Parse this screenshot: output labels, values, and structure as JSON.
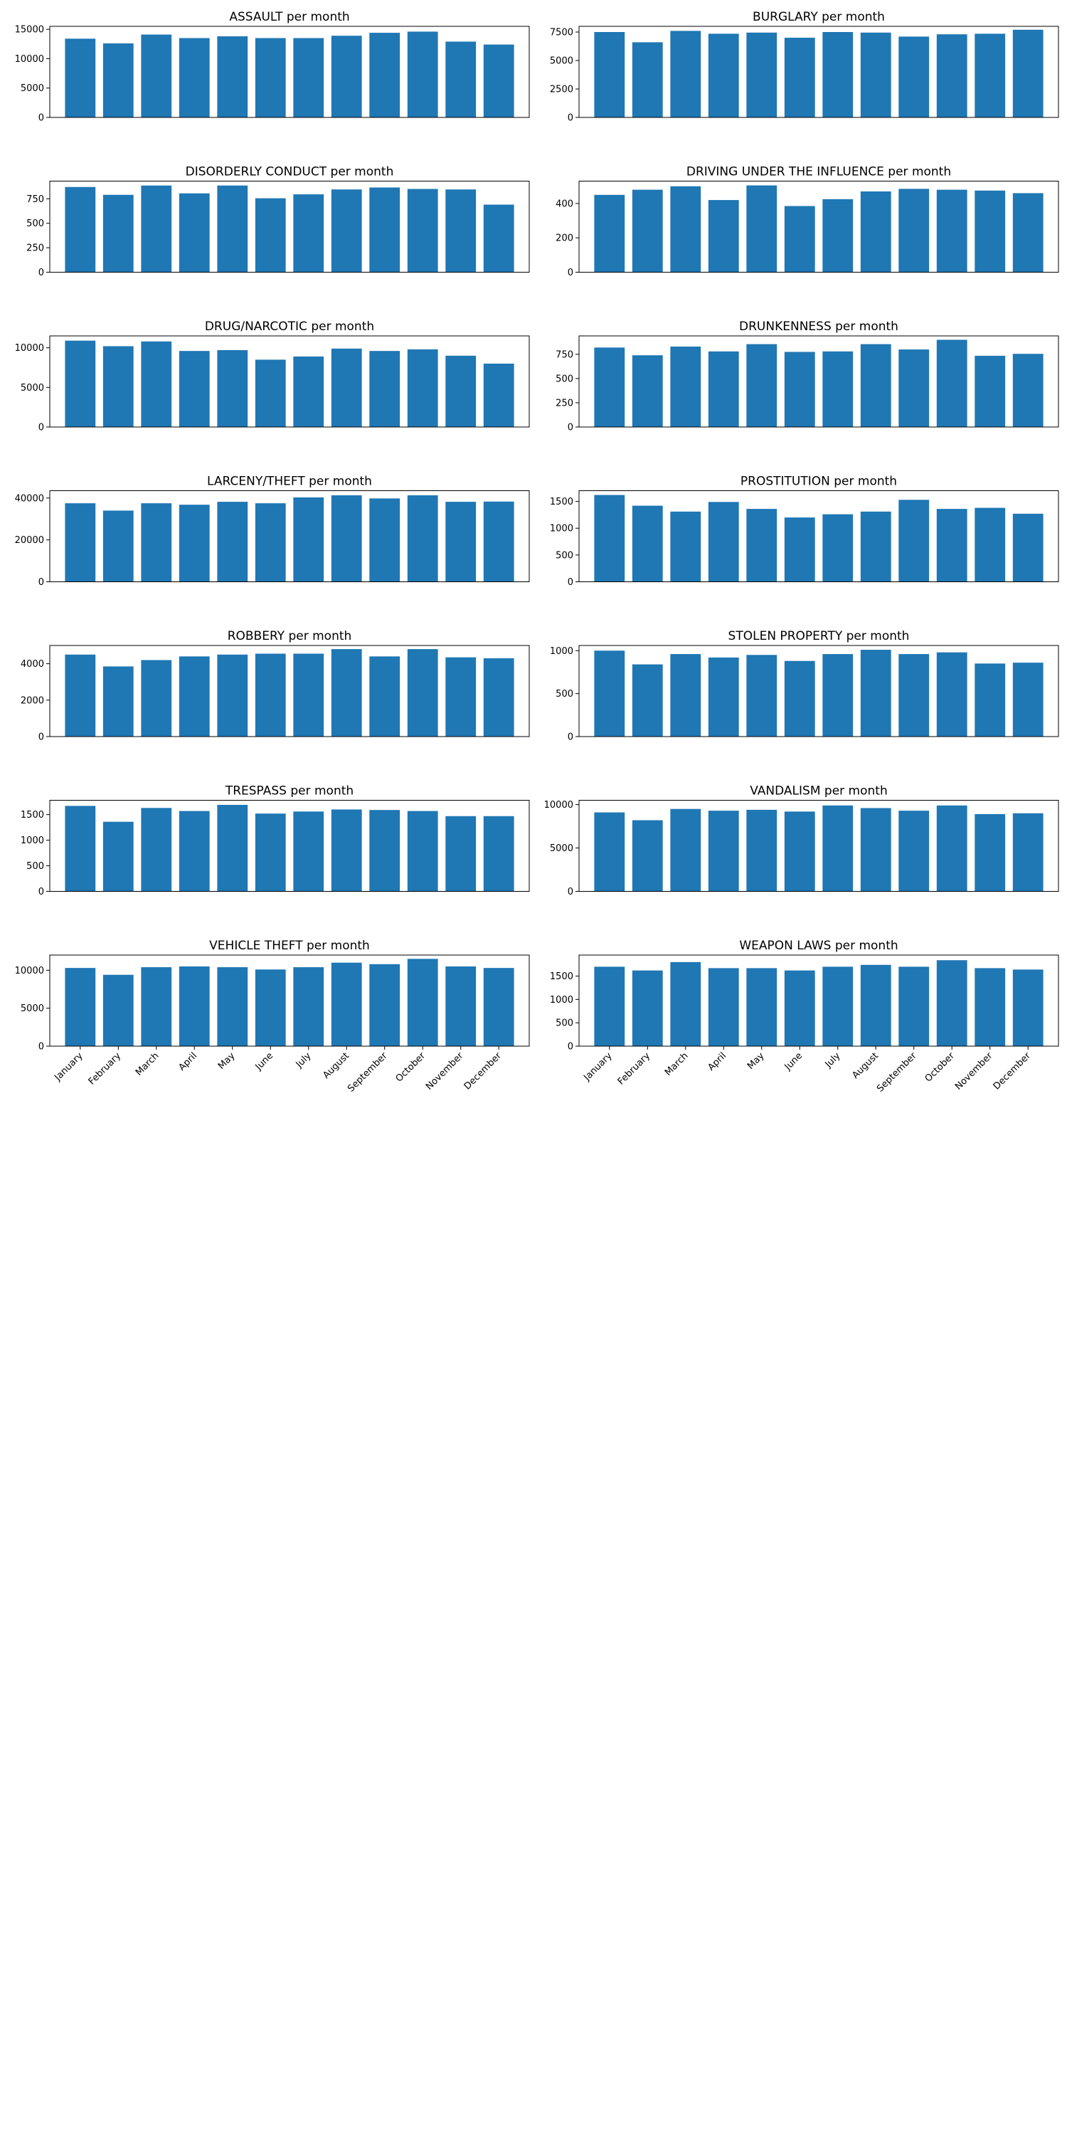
{
  "chart_data": [
    {
      "type": "bar",
      "title": "ASSAULT per month",
      "categories": [
        "January",
        "February",
        "March",
        "April",
        "May",
        "June",
        "July",
        "August",
        "September",
        "October",
        "November",
        "December"
      ],
      "values": [
        13400,
        12600,
        14100,
        13500,
        13800,
        13500,
        13500,
        13900,
        14400,
        14600,
        12900,
        12400
      ],
      "ylim": [
        0,
        15500
      ],
      "yticks": [
        0,
        5000,
        10000,
        15000
      ],
      "yticklabels": [
        "0",
        "5000",
        "10000",
        "15000"
      ],
      "show_xticklabels": false,
      "color": "#1f77b4"
    },
    {
      "type": "bar",
      "title": "BURGLARY per month",
      "categories": [
        "January",
        "February",
        "March",
        "April",
        "May",
        "June",
        "July",
        "August",
        "September",
        "October",
        "November",
        "December"
      ],
      "values": [
        7500,
        6600,
        7600,
        7350,
        7450,
        7000,
        7500,
        7450,
        7100,
        7300,
        7350,
        7700
      ],
      "ylim": [
        0,
        8000
      ],
      "yticks": [
        0,
        2500,
        5000,
        7500
      ],
      "yticklabels": [
        "0",
        "2500",
        "5000",
        "7500"
      ],
      "show_xticklabels": false,
      "color": "#1f77b4"
    },
    {
      "type": "bar",
      "title": "DISORDERLY CONDUCT per month",
      "categories": [
        "January",
        "February",
        "March",
        "April",
        "May",
        "June",
        "July",
        "August",
        "September",
        "October",
        "November",
        "December"
      ],
      "values": [
        870,
        790,
        885,
        805,
        885,
        755,
        795,
        845,
        865,
        850,
        845,
        690
      ],
      "ylim": [
        0,
        930
      ],
      "yticks": [
        0,
        250,
        500,
        750
      ],
      "yticklabels": [
        "0",
        "250",
        "500",
        "750"
      ],
      "show_xticklabels": false,
      "color": "#1f77b4"
    },
    {
      "type": "bar",
      "title": "DRIVING UNDER THE INFLUENCE per month",
      "categories": [
        "January",
        "February",
        "March",
        "April",
        "May",
        "June",
        "July",
        "August",
        "September",
        "October",
        "November",
        "December"
      ],
      "values": [
        450,
        480,
        500,
        420,
        505,
        385,
        425,
        470,
        485,
        480,
        475,
        460
      ],
      "ylim": [
        0,
        530
      ],
      "yticks": [
        0,
        200,
        400
      ],
      "yticklabels": [
        "0",
        "200",
        "400"
      ],
      "show_xticklabels": false,
      "color": "#1f77b4"
    },
    {
      "type": "bar",
      "title": "DRUG/NARCOTIC per month",
      "categories": [
        "January",
        "February",
        "March",
        "April",
        "May",
        "June",
        "July",
        "August",
        "September",
        "October",
        "November",
        "December"
      ],
      "values": [
        10900,
        10200,
        10800,
        9600,
        9700,
        8500,
        8900,
        9900,
        9600,
        9800,
        9000,
        8000
      ],
      "ylim": [
        0,
        11500
      ],
      "yticks": [
        0,
        5000,
        10000
      ],
      "yticklabels": [
        "0",
        "5000",
        "10000"
      ],
      "show_xticklabels": false,
      "color": "#1f77b4"
    },
    {
      "type": "bar",
      "title": "DRUNKENNESS per month",
      "categories": [
        "January",
        "February",
        "March",
        "April",
        "May",
        "June",
        "July",
        "August",
        "September",
        "October",
        "November",
        "December"
      ],
      "values": [
        820,
        740,
        830,
        780,
        855,
        775,
        780,
        855,
        800,
        900,
        735,
        755
      ],
      "ylim": [
        0,
        940
      ],
      "yticks": [
        0,
        250,
        500,
        750
      ],
      "yticklabels": [
        "0",
        "250",
        "500",
        "750"
      ],
      "show_xticklabels": false,
      "color": "#1f77b4"
    },
    {
      "type": "bar",
      "title": "LARCENY/THEFT per month",
      "categories": [
        "January",
        "February",
        "March",
        "April",
        "May",
        "June",
        "July",
        "August",
        "September",
        "October",
        "November",
        "December"
      ],
      "values": [
        37500,
        34000,
        37500,
        36800,
        38200,
        37500,
        40300,
        41300,
        39800,
        41300,
        38200,
        38300
      ],
      "ylim": [
        0,
        43500
      ],
      "yticks": [
        0,
        20000,
        40000
      ],
      "yticklabels": [
        "0",
        "20000",
        "40000"
      ],
      "show_xticklabels": false,
      "color": "#1f77b4"
    },
    {
      "type": "bar",
      "title": "PROSTITUTION per month",
      "categories": [
        "January",
        "February",
        "March",
        "April",
        "May",
        "June",
        "July",
        "August",
        "September",
        "October",
        "November",
        "December"
      ],
      "values": [
        1620,
        1420,
        1310,
        1490,
        1360,
        1200,
        1260,
        1310,
        1530,
        1360,
        1380,
        1270
      ],
      "ylim": [
        0,
        1700
      ],
      "yticks": [
        0,
        500,
        1000,
        1500
      ],
      "yticklabels": [
        "0",
        "500",
        "1000",
        "1500"
      ],
      "show_xticklabels": false,
      "color": "#1f77b4"
    },
    {
      "type": "bar",
      "title": "ROBBERY per month",
      "categories": [
        "January",
        "February",
        "March",
        "April",
        "May",
        "June",
        "July",
        "August",
        "September",
        "October",
        "November",
        "December"
      ],
      "values": [
        4500,
        3850,
        4200,
        4400,
        4500,
        4550,
        4550,
        4800,
        4400,
        4800,
        4350,
        4300
      ],
      "ylim": [
        0,
        5000
      ],
      "yticks": [
        0,
        2000,
        4000
      ],
      "yticklabels": [
        "0",
        "2000",
        "4000"
      ],
      "show_xticklabels": false,
      "color": "#1f77b4"
    },
    {
      "type": "bar",
      "title": "STOLEN PROPERTY per month",
      "categories": [
        "January",
        "February",
        "March",
        "April",
        "May",
        "June",
        "July",
        "August",
        "September",
        "October",
        "November",
        "December"
      ],
      "values": [
        1000,
        840,
        960,
        920,
        950,
        880,
        960,
        1010,
        960,
        980,
        850,
        860
      ],
      "ylim": [
        0,
        1060
      ],
      "yticks": [
        0,
        500,
        1000
      ],
      "yticklabels": [
        "0",
        "500",
        "1000"
      ],
      "show_xticklabels": false,
      "color": "#1f77b4"
    },
    {
      "type": "bar",
      "title": "TRESPASS per month",
      "categories": [
        "January",
        "February",
        "March",
        "April",
        "May",
        "June",
        "July",
        "August",
        "September",
        "October",
        "November",
        "December"
      ],
      "values": [
        1670,
        1360,
        1630,
        1570,
        1690,
        1520,
        1560,
        1600,
        1590,
        1570,
        1470,
        1470
      ],
      "ylim": [
        0,
        1780
      ],
      "yticks": [
        0,
        500,
        1000,
        1500
      ],
      "yticklabels": [
        "0",
        "500",
        "1000",
        "1500"
      ],
      "show_xticklabels": false,
      "color": "#1f77b4"
    },
    {
      "type": "bar",
      "title": "VANDALISM per month",
      "categories": [
        "January",
        "February",
        "March",
        "April",
        "May",
        "June",
        "July",
        "August",
        "September",
        "October",
        "November",
        "December"
      ],
      "values": [
        9100,
        8200,
        9500,
        9300,
        9400,
        9200,
        9900,
        9600,
        9300,
        9900,
        8900,
        9000
      ],
      "ylim": [
        0,
        10500
      ],
      "yticks": [
        0,
        5000,
        10000
      ],
      "yticklabels": [
        "0",
        "5000",
        "10000"
      ],
      "show_xticklabels": false,
      "color": "#1f77b4"
    },
    {
      "type": "bar",
      "title": "VEHICLE THEFT per month",
      "categories": [
        "January",
        "February",
        "March",
        "April",
        "May",
        "June",
        "July",
        "August",
        "September",
        "October",
        "November",
        "December"
      ],
      "values": [
        10300,
        9400,
        10400,
        10500,
        10400,
        10100,
        10400,
        11000,
        10800,
        11500,
        10500,
        10300
      ],
      "ylim": [
        0,
        12000
      ],
      "yticks": [
        0,
        5000,
        10000
      ],
      "yticklabels": [
        "0",
        "5000",
        "10000"
      ],
      "show_xticklabels": true,
      "color": "#1f77b4"
    },
    {
      "type": "bar",
      "title": "WEAPON LAWS per month",
      "categories": [
        "January",
        "February",
        "March",
        "April",
        "May",
        "June",
        "July",
        "August",
        "September",
        "October",
        "November",
        "December"
      ],
      "values": [
        1700,
        1620,
        1800,
        1670,
        1670,
        1620,
        1700,
        1740,
        1700,
        1840,
        1670,
        1640
      ],
      "ylim": [
        0,
        1950
      ],
      "yticks": [
        0,
        500,
        1000,
        1500
      ],
      "yticklabels": [
        "0",
        "500",
        "1000",
        "1500"
      ],
      "show_xticklabels": true,
      "color": "#1f77b4"
    }
  ]
}
